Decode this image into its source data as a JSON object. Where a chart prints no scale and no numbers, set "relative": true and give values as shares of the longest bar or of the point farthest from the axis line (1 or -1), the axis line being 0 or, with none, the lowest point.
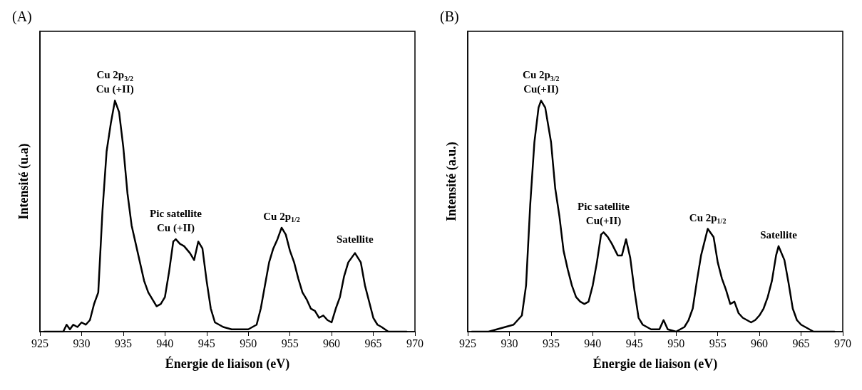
{
  "chart_data": [
    {
      "type": "line",
      "title": "(A)",
      "xlabel": "Énergie de liaison (eV)",
      "ylabel": "Intensité (u.a)",
      "relative": true,
      "xlim": [
        925,
        970
      ],
      "xticks": [
        925,
        930,
        935,
        940,
        945,
        950,
        955,
        960,
        965,
        970
      ],
      "grid": false,
      "marker": "none",
      "line_style": "solid",
      "annotations": [
        {
          "text": "Cu 2p$_{3/2}$\nCu (+II)",
          "x": 934,
          "y": 1.0
        },
        {
          "text": "Pic satellite\nCu (+II)",
          "x": 941.3,
          "y": 0.4
        },
        {
          "text": "Cu 2p$_{1/2}$",
          "x": 954,
          "y": 0.45
        },
        {
          "text": "Satellite",
          "x": 962.8,
          "y": 0.35
        }
      ],
      "series": [
        {
          "color": "#000000",
          "x": [
            925.5,
            927.8,
            928.2,
            928.6,
            929,
            929.5,
            930,
            930.5,
            931,
            931.5,
            932,
            932.5,
            933,
            933.5,
            934,
            934.5,
            935,
            935.5,
            936,
            936.5,
            937,
            937.5,
            938,
            938.5,
            939,
            939.5,
            940,
            940.5,
            941,
            941.3,
            941.8,
            942.3,
            943,
            943.5,
            944,
            944.5,
            945,
            945.5,
            946,
            947,
            948,
            949,
            950,
            951,
            951.5,
            952,
            952.5,
            953,
            953.5,
            954,
            954.5,
            955,
            955.5,
            956,
            956.5,
            957,
            957.5,
            958,
            958.5,
            959,
            959.5,
            960,
            960.5,
            961,
            961.5,
            962,
            962.8,
            963.5,
            964,
            964.5,
            965,
            965.5,
            966,
            966.8,
            969
          ],
          "values": [
            0,
            0,
            0.03,
            0.01,
            0.03,
            0.02,
            0.04,
            0.03,
            0.05,
            0.12,
            0.17,
            0.52,
            0.78,
            0.9,
            1.0,
            0.95,
            0.8,
            0.6,
            0.46,
            0.38,
            0.3,
            0.22,
            0.17,
            0.14,
            0.11,
            0.12,
            0.15,
            0.26,
            0.39,
            0.4,
            0.38,
            0.37,
            0.34,
            0.31,
            0.39,
            0.36,
            0.22,
            0.1,
            0.04,
            0.02,
            0.01,
            0.01,
            0.01,
            0.03,
            0.1,
            0.2,
            0.3,
            0.36,
            0.4,
            0.45,
            0.42,
            0.35,
            0.3,
            0.23,
            0.17,
            0.14,
            0.1,
            0.09,
            0.06,
            0.07,
            0.05,
            0.04,
            0.1,
            0.15,
            0.24,
            0.3,
            0.34,
            0.3,
            0.2,
            0.13,
            0.06,
            0.03,
            0.02,
            0,
            0
          ]
        }
      ]
    },
    {
      "type": "line",
      "title": "(B)",
      "xlabel": "Énergie de liaison (eV)",
      "ylabel": "Intensité (a.u.)",
      "relative": true,
      "xlim": [
        925,
        970
      ],
      "xticks": [
        925,
        930,
        935,
        940,
        945,
        950,
        955,
        960,
        965,
        970
      ],
      "grid": false,
      "marker": "none",
      "line_style": "solid",
      "annotations": [
        {
          "text": "Cu 2p$_{3/2}$\nCu(+II)",
          "x": 933.8,
          "y": 1.0
        },
        {
          "text": "Pic satellite\nCu(+II)",
          "x": 941.3,
          "y": 0.43
        },
        {
          "text": "Cu 2p$_{1/2}$",
          "x": 953.8,
          "y": 0.445
        },
        {
          "text": "Satellite",
          "x": 962.3,
          "y": 0.37
        }
      ],
      "series": [
        {
          "color": "#000000",
          "x": [
            925.5,
            927.5,
            928.5,
            929.5,
            930.5,
            931,
            931.5,
            932,
            932.5,
            933,
            933.5,
            933.8,
            934.3,
            935,
            935.5,
            936,
            936.5,
            937,
            937.5,
            938,
            938.5,
            939,
            939.5,
            940,
            940.5,
            941,
            941.3,
            941.8,
            942.3,
            943,
            943.5,
            944,
            944.5,
            945,
            945.5,
            946,
            947,
            948,
            948.5,
            949,
            950,
            951,
            951.5,
            952,
            952.5,
            953,
            953.8,
            954.5,
            955,
            955.5,
            956,
            956.5,
            957,
            957.5,
            958,
            958.5,
            959,
            959.5,
            960,
            960.5,
            961,
            961.5,
            962,
            962.3,
            963,
            963.5,
            964,
            964.5,
            965,
            965.5,
            966,
            966.5,
            969
          ],
          "values": [
            0,
            0,
            0.01,
            0.02,
            0.03,
            0.05,
            0.07,
            0.2,
            0.55,
            0.82,
            0.97,
            1.0,
            0.97,
            0.82,
            0.62,
            0.5,
            0.35,
            0.27,
            0.2,
            0.15,
            0.13,
            0.12,
            0.13,
            0.2,
            0.3,
            0.42,
            0.43,
            0.41,
            0.38,
            0.33,
            0.33,
            0.4,
            0.32,
            0.18,
            0.06,
            0.03,
            0.01,
            0.01,
            0.05,
            0.01,
            0,
            0.02,
            0.05,
            0.1,
            0.22,
            0.33,
            0.445,
            0.41,
            0.3,
            0.23,
            0.18,
            0.12,
            0.13,
            0.08,
            0.06,
            0.05,
            0.04,
            0.05,
            0.07,
            0.1,
            0.15,
            0.22,
            0.33,
            0.37,
            0.31,
            0.21,
            0.1,
            0.05,
            0.03,
            0.02,
            0.01,
            0,
            0
          ]
        }
      ]
    }
  ]
}
